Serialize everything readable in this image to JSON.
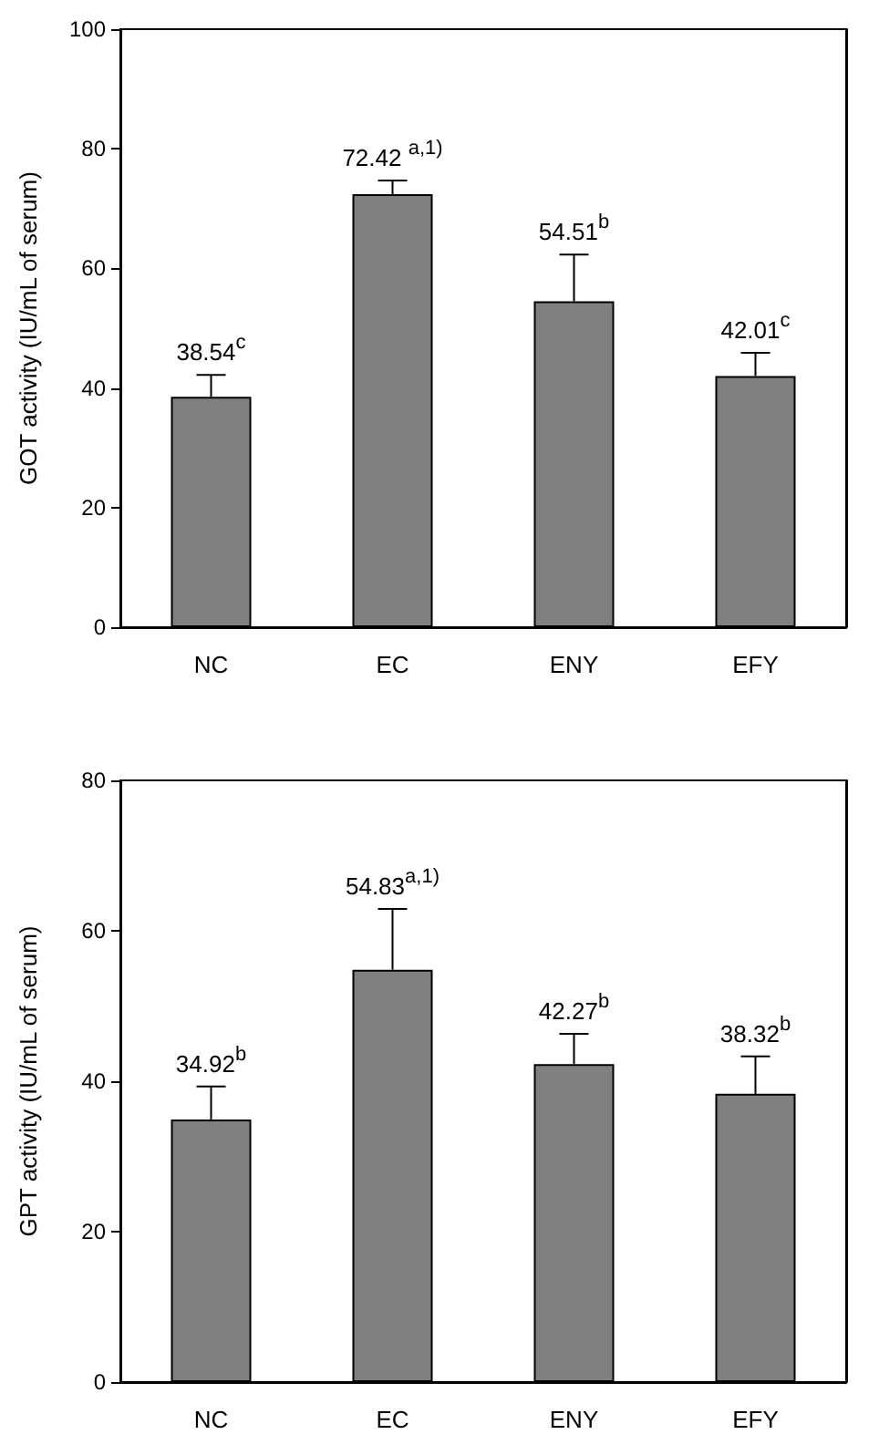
{
  "chart_data": [
    {
      "type": "bar",
      "ylabel": "GOT activity (IU/mL of serum)",
      "categories": [
        "NC",
        "EC",
        "ENY",
        "EFY"
      ],
      "values": [
        38.54,
        72.42,
        54.51,
        42.01
      ],
      "color": "#808080",
      "errors": [
        [
          38.54,
          42.2
        ],
        [
          72.42,
          74.7
        ],
        [
          54.51,
          62.3
        ],
        [
          42.01,
          45.9
        ]
      ],
      "value_labels": [
        "38.54$^{c}$",
        "72.42 $^{a,1)}$",
        "54.51$^{b}$",
        "42.01$^{c}$"
      ],
      "ylim": [
        0,
        100
      ],
      "yticks": [
        0,
        20,
        40,
        60,
        80,
        100
      ],
      "grid": false
    },
    {
      "type": "bar",
      "ylabel": "GPT activity (IU/mL of serum)",
      "categories": [
        "NC",
        "EC",
        "ENY",
        "EFY"
      ],
      "values": [
        34.92,
        54.83,
        42.27,
        38.32
      ],
      "color": "#808080",
      "errors": [
        [
          34.92,
          39.3
        ],
        [
          54.83,
          62.9
        ],
        [
          42.27,
          46.3
        ],
        [
          38.32,
          43.3
        ]
      ],
      "value_labels": [
        "34.92$^{b}$",
        "54.83$^{a,1)}$",
        "42.27$^{b}$",
        "38.32$^{b}$"
      ],
      "ylim": [
        0,
        80
      ],
      "yticks": [
        0,
        20,
        40,
        60,
        80
      ],
      "grid": false
    }
  ]
}
